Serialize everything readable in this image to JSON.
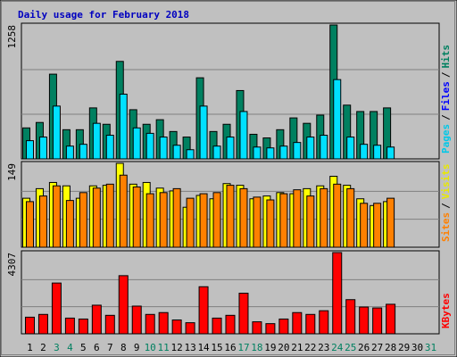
{
  "chart_data": [
    {
      "type": "bar",
      "title": "Daily usage for February 2018",
      "ylim": [
        0,
        1258
      ],
      "yticks": [
        1258
      ],
      "y_label_parts": [
        {
          "text": "Pages",
          "color": "#00c8e8"
        },
        {
          "text": "/",
          "color": "#000000"
        },
        {
          "text": "Files",
          "color": "#0000ff"
        },
        {
          "text": "/",
          "color": "#000000"
        },
        {
          "text": "Hits",
          "color": "#008060"
        }
      ],
      "series": [
        {
          "name": "Hits",
          "color": "#008060",
          "values": [
            291,
            342,
            796,
            274,
            274,
            479,
            325,
            916,
            462,
            325,
            368,
            257,
            205,
            762,
            257,
            325,
            642,
            231,
            197,
            274,
            385,
            334,
            411,
            1258,
            505,
            445,
            445,
            479,
            null,
            null,
            null
          ]
        },
        {
          "name": "Pages",
          "color": "#00e0ff",
          "values": [
            171,
            205,
            496,
            120,
            137,
            334,
            222,
            608,
            291,
            240,
            205,
            128,
            86,
            496,
            120,
            205,
            445,
            111,
            103,
            120,
            154,
            205,
            222,
            745,
            205,
            137,
            128,
            111,
            null,
            null,
            null
          ]
        }
      ]
    },
    {
      "type": "bar",
      "ylim": [
        0,
        149
      ],
      "yticks": [
        149
      ],
      "y_label_parts": [
        {
          "text": "Sites",
          "color": "#ff8000"
        },
        {
          "text": "/",
          "color": "#000000"
        },
        {
          "text": "Visits",
          "color": "#e8e800"
        }
      ],
      "series": [
        {
          "name": "Visits",
          "color": "#ffff00",
          "values": [
            87,
            104,
            115,
            109,
            87,
            109,
            110,
            149,
            112,
            115,
            105,
            100,
            71,
            92,
            86,
            113,
            110,
            86,
            91,
            97,
            95,
            104,
            109,
            126,
            110,
            86,
            74,
            81,
            null,
            null,
            null
          ]
        },
        {
          "name": "Sites",
          "color": "#ff8000",
          "values": [
            81,
            91,
            109,
            83,
            97,
            105,
            112,
            128,
            107,
            95,
            97,
            104,
            87,
            95,
            97,
            110,
            104,
            89,
            84,
            95,
            102,
            91,
            104,
            112,
            104,
            78,
            78,
            87,
            null,
            null,
            null
          ]
        }
      ]
    },
    {
      "type": "bar",
      "ylim": [
        0,
        4307
      ],
      "yticks": [
        4307
      ],
      "y_label_parts": [
        {
          "text": "KBytes",
          "color": "#ff0000"
        }
      ],
      "series": [
        {
          "name": "KBytes",
          "color": "#ff0000",
          "values": [
            881,
            1028,
            2692,
            832,
            783,
            1517,
            979,
            3083,
            1468,
            1028,
            1125,
            734,
            587,
            2496,
            832,
            979,
            2153,
            636,
            538,
            783,
            1125,
            1028,
            1223,
            4307,
            1811,
            1419,
            1370,
            1566,
            null,
            null,
            null
          ]
        }
      ],
      "categories": [
        "1",
        "2",
        "3",
        "4",
        "5",
        "6",
        "7",
        "8",
        "9",
        "10",
        "11",
        "12",
        "13",
        "14",
        "15",
        "16",
        "17",
        "18",
        "19",
        "20",
        "21",
        "22",
        "23",
        "24",
        "25",
        "26",
        "27",
        "28",
        "29",
        "30",
        "31"
      ],
      "category_colors": [
        "#000000",
        "#000000",
        "#008060",
        "#008060",
        "#000000",
        "#000000",
        "#000000",
        "#000000",
        "#000000",
        "#008060",
        "#008060",
        "#000000",
        "#000000",
        "#000000",
        "#000000",
        "#000000",
        "#008060",
        "#008060",
        "#000000",
        "#000000",
        "#000000",
        "#000000",
        "#000000",
        "#008060",
        "#008060",
        "#000000",
        "#000000",
        "#000000",
        "#000000",
        "#000000",
        "#008060"
      ]
    }
  ]
}
